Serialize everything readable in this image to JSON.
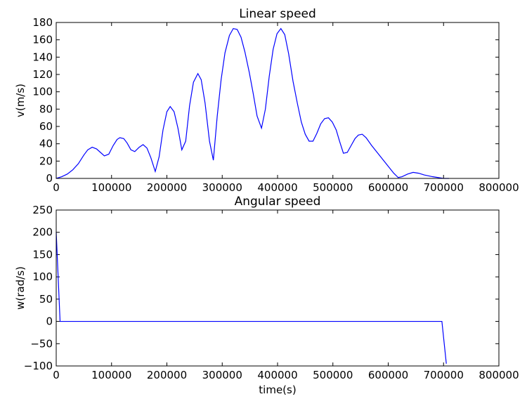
{
  "chart_data": [
    {
      "type": "line",
      "title": "Linear speed",
      "ylabel": "v(m/s)",
      "xlim": [
        0,
        800000
      ],
      "xticks": [
        0,
        100000,
        200000,
        300000,
        400000,
        500000,
        600000,
        700000,
        800000
      ],
      "ylim": [
        0,
        180
      ],
      "yticks": [
        0,
        20,
        40,
        60,
        80,
        100,
        120,
        140,
        160,
        180
      ],
      "grid": false,
      "x": [
        0,
        10000,
        20000,
        30000,
        40000,
        50000,
        57000,
        65000,
        73000,
        80000,
        87000,
        95000,
        103000,
        110000,
        115000,
        122000,
        128000,
        135000,
        142000,
        150000,
        157000,
        164000,
        171000,
        179000,
        186000,
        193000,
        200000,
        206000,
        213000,
        220000,
        227000,
        234000,
        241000,
        248000,
        256000,
        262000,
        269000,
        277000,
        284000,
        291000,
        298000,
        305000,
        313000,
        320000,
        327000,
        334000,
        341000,
        349000,
        356000,
        363000,
        371000,
        378000,
        385000,
        392000,
        399000,
        406000,
        413000,
        420000,
        428000,
        436000,
        443000,
        450000,
        457000,
        464000,
        471000,
        478000,
        485000,
        492000,
        499000,
        506000,
        512000,
        519000,
        526000,
        533000,
        540000,
        546000,
        553000,
        560000,
        570000,
        580000,
        590000,
        600000,
        610000,
        618000,
        625000,
        635000,
        645000,
        655000,
        665000,
        680000,
        700000,
        710000
      ],
      "series": [
        {
          "color": "#0000ff",
          "values": [
            0,
            2,
            5,
            10,
            17,
            27,
            33,
            36,
            34,
            30,
            26,
            28,
            38,
            45,
            47,
            46,
            41,
            33,
            31,
            36,
            39,
            35,
            24,
            8,
            25,
            56,
            77,
            83,
            77,
            58,
            33,
            43,
            84,
            111,
            121,
            114,
            87,
            43,
            21,
            72,
            114,
            145,
            165,
            173,
            172,
            163,
            146,
            122,
            98,
            72,
            58,
            80,
            118,
            149,
            167,
            173,
            166,
            144,
            112,
            86,
            65,
            51,
            43,
            43,
            52,
            63,
            69,
            70,
            65,
            56,
            43,
            29,
            30,
            38,
            46,
            50,
            51,
            47,
            38,
            30,
            22,
            14,
            6,
            1,
            2,
            5,
            7,
            6,
            4,
            2,
            0,
            0
          ]
        }
      ]
    },
    {
      "type": "line",
      "title": "Angular speed",
      "xlabel": "time(s)",
      "ylabel": "w(rad/s)",
      "xlim": [
        0,
        800000
      ],
      "xticks": [
        0,
        100000,
        200000,
        300000,
        400000,
        500000,
        600000,
        700000,
        800000
      ],
      "ylim": [
        -100,
        250
      ],
      "yticks": [
        {
          "value": -100,
          "label": "−100"
        },
        {
          "value": -50,
          "label": "−50"
        },
        0,
        50,
        100,
        150,
        200,
        250
      ],
      "grid": false,
      "x": [
        0,
        7000,
        697000,
        705000
      ],
      "series": [
        {
          "color": "#0000ff",
          "values": [
            200,
            0,
            0,
            -95
          ]
        }
      ]
    }
  ]
}
